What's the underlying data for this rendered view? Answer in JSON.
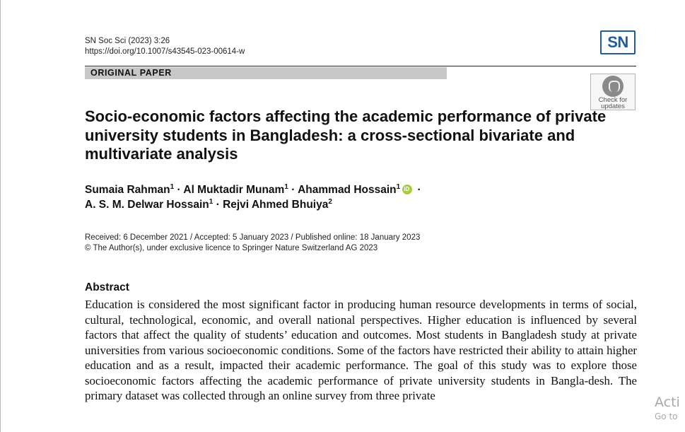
{
  "journal": {
    "citation": "SN Soc Sci (2023) 3:26",
    "doi": "https://doi.org/10.1007/s43545-023-00614-w",
    "logo_text": "SN",
    "logo_color": "#1f5da0"
  },
  "paper_type": "ORIGINAL PAPER",
  "check_updates": {
    "line1": "Check for",
    "line2": "updates"
  },
  "title": "Socio-economic factors affecting the academic performance of private university students in Bangladesh: a cross-sectional bivariate and multivariate analysis",
  "authors": [
    {
      "name": "Sumaia Rahman",
      "affil": "1",
      "sep": " · "
    },
    {
      "name": "Al Muktadir Munam",
      "affil": "1",
      "sep": " · "
    },
    {
      "name": "Ahammad Hossain",
      "affil": "1",
      "sep": " · "
    },
    {
      "name": "A. S. M. Delwar Hossain",
      "affil": "1",
      "sep": " · "
    },
    {
      "name": "Rejvi Ahmed Bhuiya",
      "affil": "2",
      "sep": ""
    }
  ],
  "dates_line": "Received: 6 December 2021 / Accepted: 5 January 2023 / Published online: 18 January 2023",
  "copyright_line": "© The Author(s), under exclusive licence to Springer Nature Switzerland AG 2023",
  "abstract": {
    "heading": "Abstract",
    "text": "Education is considered the most significant factor in producing human resource developments in terms of social, cultural, technological, economic, and overall national perspectives. Higher education is influenced by several factors that affect the quality of students’ education and outcomes. Most students in Bangladesh study at private universities from various socioeconomic conditions. Some of the factors have restricted their ability to attain higher education and as a result, impacted their academic performance. The goal of this study was to explore those socioeconomic factors affecting the academic performance of private university students in Bangla-desh. The primary dataset was collected through an online survey from three private"
  },
  "watermark": {
    "line1": "Acti",
    "line2": "Go to"
  }
}
